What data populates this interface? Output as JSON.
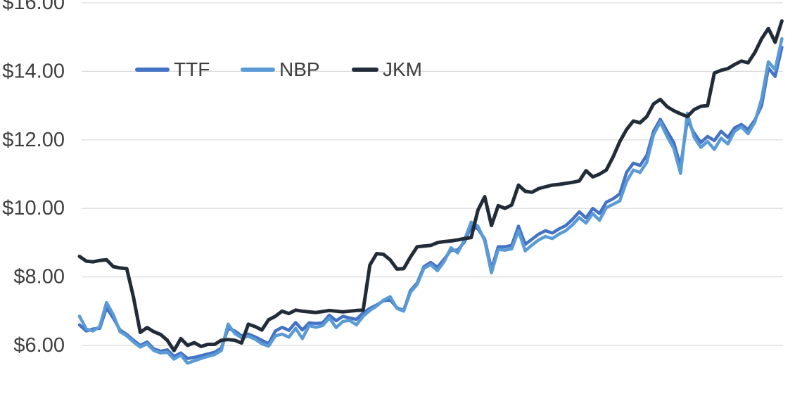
{
  "chart": {
    "background_color": "#ffffff",
    "grid_color": "#d9d9d9",
    "label_color": "#3f3f3f",
    "legend": [
      {
        "label": "TTF",
        "color": "#4472c4"
      },
      {
        "label": "NBP",
        "color": "#5b9bd5"
      },
      {
        "label": "JKM",
        "color": "#222c38"
      }
    ],
    "chart_data": {
      "type": "line",
      "title": "",
      "xlabel": "",
      "ylabel": "",
      "x_tick_labels": [],
      "y_ticks": [
        {
          "label": "$16.00",
          "value": 16
        },
        {
          "label": "$14.00",
          "value": 14
        },
        {
          "label": "$12.00",
          "value": 12
        },
        {
          "label": "$10.00",
          "value": 10
        },
        {
          "label": "$8.00",
          "value": 8
        },
        {
          "label": "$6.00",
          "value": 6
        }
      ],
      "y_unit": "USD",
      "y_range_visible": [
        4.4,
        16.1
      ],
      "grid": "horizontal",
      "legend_position": "top-left-inside",
      "series": [
        {
          "name": "TTF",
          "color": "#4472c4",
          "values": [
            6.6,
            6.42,
            6.48,
            6.5,
            7.1,
            6.8,
            6.45,
            6.32,
            6.15,
            6.0,
            6.1,
            5.9,
            5.83,
            5.87,
            5.68,
            5.78,
            5.62,
            5.65,
            5.7,
            5.75,
            5.8,
            5.92,
            6.5,
            6.42,
            6.28,
            6.33,
            6.25,
            6.15,
            6.05,
            6.42,
            6.53,
            6.44,
            6.67,
            6.45,
            6.66,
            6.64,
            6.66,
            6.88,
            6.72,
            6.85,
            6.8,
            6.76,
            6.95,
            7.08,
            7.18,
            7.3,
            7.33,
            7.1,
            7.02,
            7.6,
            7.82,
            8.3,
            8.42,
            8.28,
            8.52,
            8.78,
            8.78,
            9.02,
            9.48,
            9.4,
            9.1,
            8.22,
            8.88,
            8.88,
            8.92,
            9.48,
            8.95,
            9.1,
            9.25,
            9.35,
            9.28,
            9.4,
            9.5,
            9.68,
            9.9,
            9.72,
            10.0,
            9.85,
            10.18,
            10.28,
            10.42,
            11.05,
            11.32,
            11.25,
            11.55,
            12.25,
            12.6,
            12.25,
            11.92,
            11.22,
            12.58,
            12.2,
            11.92,
            12.1,
            11.98,
            12.25,
            12.07,
            12.35,
            12.45,
            12.3,
            12.58,
            13.0,
            14.1,
            13.85,
            14.7
          ]
        },
        {
          "name": "NBP",
          "color": "#5b9bd5",
          "values": [
            6.85,
            6.48,
            6.42,
            6.55,
            7.25,
            6.9,
            6.4,
            6.28,
            6.1,
            5.95,
            6.05,
            5.85,
            5.78,
            5.8,
            5.6,
            5.72,
            5.48,
            5.55,
            5.62,
            5.68,
            5.73,
            5.85,
            6.62,
            6.35,
            6.22,
            6.27,
            6.18,
            6.05,
            5.98,
            6.28,
            6.33,
            6.24,
            6.5,
            6.2,
            6.58,
            6.53,
            6.58,
            6.8,
            6.52,
            6.7,
            6.73,
            6.6,
            6.85,
            7.02,
            7.15,
            7.32,
            7.42,
            7.08,
            7.0,
            7.55,
            7.78,
            8.25,
            8.36,
            8.18,
            8.45,
            8.85,
            8.7,
            9.08,
            9.6,
            9.48,
            9.05,
            8.12,
            8.8,
            8.78,
            8.82,
            9.35,
            8.76,
            8.93,
            9.08,
            9.18,
            9.12,
            9.25,
            9.35,
            9.52,
            9.73,
            9.57,
            9.85,
            9.65,
            10.02,
            10.12,
            10.22,
            10.78,
            11.12,
            11.05,
            11.35,
            12.15,
            12.52,
            12.1,
            11.75,
            11.02,
            12.78,
            12.08,
            11.78,
            11.95,
            11.72,
            12.05,
            11.88,
            12.25,
            12.38,
            12.18,
            12.52,
            13.2,
            14.28,
            14.05,
            14.95
          ]
        },
        {
          "name": "JKM",
          "color": "#222c38",
          "values": [
            8.6,
            8.46,
            8.44,
            8.48,
            8.5,
            8.3,
            8.26,
            8.24,
            7.4,
            6.38,
            6.52,
            6.4,
            6.32,
            6.15,
            5.85,
            6.2,
            6.0,
            6.08,
            5.97,
            6.03,
            6.03,
            6.15,
            6.17,
            6.15,
            6.07,
            6.62,
            6.55,
            6.45,
            6.75,
            6.85,
            7.0,
            6.93,
            7.03,
            7.0,
            6.98,
            6.96,
            6.99,
            7.02,
            7.0,
            6.98,
            7.0,
            7.02,
            7.03,
            8.35,
            8.68,
            8.66,
            8.5,
            8.23,
            8.24,
            8.58,
            8.88,
            8.9,
            8.92,
            9.0,
            9.03,
            9.05,
            9.08,
            9.12,
            9.15,
            9.95,
            10.34,
            9.5,
            10.08,
            10.0,
            10.1,
            10.68,
            10.5,
            10.47,
            10.58,
            10.63,
            10.68,
            10.7,
            10.73,
            10.76,
            10.8,
            11.1,
            10.92,
            11.0,
            11.12,
            11.5,
            11.95,
            12.3,
            12.55,
            12.5,
            12.68,
            13.05,
            13.18,
            12.97,
            12.85,
            12.76,
            12.68,
            12.88,
            12.98,
            13.0,
            13.95,
            14.03,
            14.08,
            14.2,
            14.3,
            14.25,
            14.55,
            14.95,
            15.25,
            14.85,
            15.47
          ]
        }
      ]
    }
  }
}
